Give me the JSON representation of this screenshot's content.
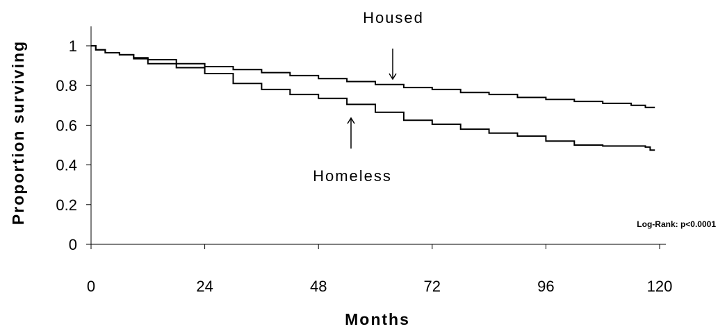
{
  "chart_data": {
    "type": "line",
    "xlabel": "Months",
    "ylabel": "Proportion surviving",
    "xlim": [
      0,
      120
    ],
    "ylim": [
      0,
      1
    ],
    "x_ticks": [
      "0",
      "24",
      "48",
      "72",
      "96",
      "120"
    ],
    "y_ticks": [
      "0",
      "0.2",
      "0.4",
      "0.6",
      "0.8",
      "1"
    ],
    "grid": false,
    "series": [
      {
        "name": "Housed",
        "x": [
          0,
          1,
          3,
          6,
          9,
          12,
          18,
          24,
          30,
          36,
          42,
          48,
          54,
          60,
          66,
          72,
          78,
          84,
          90,
          96,
          102,
          108,
          114,
          117,
          119
        ],
        "y": [
          1.0,
          0.98,
          0.965,
          0.955,
          0.94,
          0.93,
          0.91,
          0.895,
          0.88,
          0.865,
          0.85,
          0.835,
          0.82,
          0.805,
          0.79,
          0.78,
          0.765,
          0.755,
          0.74,
          0.73,
          0.72,
          0.71,
          0.7,
          0.69,
          0.69
        ]
      },
      {
        "name": "Homeless",
        "x": [
          0,
          1,
          3,
          6,
          9,
          12,
          18,
          24,
          30,
          36,
          42,
          48,
          54,
          60,
          66,
          72,
          78,
          84,
          90,
          96,
          102,
          108,
          114,
          117,
          118,
          119
        ],
        "y": [
          1.0,
          0.98,
          0.965,
          0.955,
          0.935,
          0.91,
          0.89,
          0.86,
          0.81,
          0.78,
          0.755,
          0.735,
          0.705,
          0.665,
          0.625,
          0.605,
          0.58,
          0.56,
          0.545,
          0.52,
          0.5,
          0.495,
          0.495,
          0.49,
          0.475,
          0.475
        ]
      }
    ],
    "annotations": [
      {
        "text": "Housed",
        "arrow": "down",
        "points_to": {
          "series": "Housed",
          "x": 63
        }
      },
      {
        "text": "Homeless",
        "arrow": "up",
        "points_to": {
          "series": "Homeless",
          "x": 55
        }
      }
    ],
    "note": "Log-Rank: p<0.0001"
  }
}
